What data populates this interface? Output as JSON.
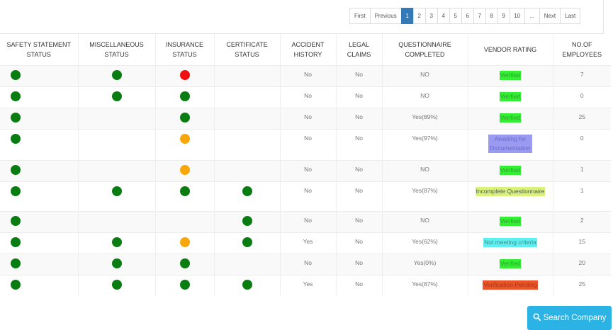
{
  "pagination": {
    "items": [
      "First",
      "Previous",
      "1",
      "2",
      "3",
      "4",
      "5",
      "6",
      "7",
      "8",
      "9",
      "10",
      "...",
      "Next",
      "Last"
    ],
    "active": "1"
  },
  "table": {
    "headers": [
      "SAFETY STATEMENT STATUS",
      "MISCELLANEOUS STATUS",
      "INSURANCE STATUS",
      "CERTIFICATE STATUS",
      "ACCIDENT HISTORY",
      "LEGAL CLAIMS",
      "QUESTIONNAIRE COMPLETED",
      "VENDOR RATING",
      "NO.OF EMPLOYEES"
    ],
    "rows": [
      {
        "safety": "green",
        "misc": "green",
        "insurance": "red",
        "certificate": "",
        "accident": "No",
        "legal": "No",
        "questionnaire": "NO",
        "rating": "Verified",
        "rating_color": "#33ee33",
        "rating_text_color": "#2aa52a",
        "employees": "7"
      },
      {
        "safety": "green",
        "misc": "green",
        "insurance": "green",
        "certificate": "",
        "accident": "No",
        "legal": "No",
        "questionnaire": "NO",
        "rating": "Verified",
        "rating_color": "#33ee33",
        "rating_text_color": "#2aa52a",
        "employees": "0"
      },
      {
        "safety": "green",
        "misc": "",
        "insurance": "green",
        "certificate": "",
        "accident": "No",
        "legal": "No",
        "questionnaire": "Yes(89%)",
        "rating": "Verified",
        "rating_color": "#33ee33",
        "rating_text_color": "#2aa52a",
        "employees": "25"
      },
      {
        "safety": "green",
        "misc": "",
        "insurance": "orange",
        "certificate": "",
        "accident": "No",
        "legal": "No",
        "questionnaire": "Yes(97%)",
        "rating": "Awaiting for Documentation",
        "rating_color": "#9a9af0",
        "rating_text_color": "#6a6ad0",
        "employees": "0"
      },
      {
        "safety": "green",
        "misc": "",
        "insurance": "orange",
        "certificate": "",
        "accident": "No",
        "legal": "No",
        "questionnaire": "NO",
        "rating": "Verified",
        "rating_color": "#33ee33",
        "rating_text_color": "#2aa52a",
        "employees": "1"
      },
      {
        "safety": "green",
        "misc": "green",
        "insurance": "green",
        "certificate": "green",
        "accident": "No",
        "legal": "No",
        "questionnaire": "Yes(87%)",
        "rating": "Incomplete Questionnaire",
        "rating_color": "#d8f37a",
        "rating_text_color": "#555555",
        "employees": "1"
      },
      {
        "safety": "green",
        "misc": "",
        "insurance": "",
        "certificate": "green",
        "accident": "No",
        "legal": "No",
        "questionnaire": "NO",
        "rating": "Verified",
        "rating_color": "#33ee33",
        "rating_text_color": "#2aa52a",
        "employees": "2"
      },
      {
        "safety": "green",
        "misc": "green",
        "insurance": "orange",
        "certificate": "green",
        "accident": "Yes",
        "legal": "No",
        "questionnaire": "Yes(62%)",
        "rating": "Not meeting criteria",
        "rating_color": "#5ef0f0",
        "rating_text_color": "#3a8f8f",
        "employees": "15"
      },
      {
        "safety": "green",
        "misc": "green",
        "insurance": "green",
        "certificate": "",
        "accident": "No",
        "legal": "No",
        "questionnaire": "Yes(0%)",
        "rating": "Verified",
        "rating_color": "#33ee33",
        "rating_text_color": "#2aa52a",
        "employees": "20"
      },
      {
        "safety": "green",
        "misc": "green",
        "insurance": "green",
        "certificate": "green",
        "accident": "Yes",
        "legal": "No",
        "questionnaire": "Yes(87%)",
        "rating": "Verification Pending",
        "rating_color": "#e8552a",
        "rating_text_color": "#b03510",
        "employees": "25"
      }
    ]
  },
  "search_button": {
    "label": "Search Company",
    "icon": "search-icon",
    "color": "#2bb3e5"
  }
}
